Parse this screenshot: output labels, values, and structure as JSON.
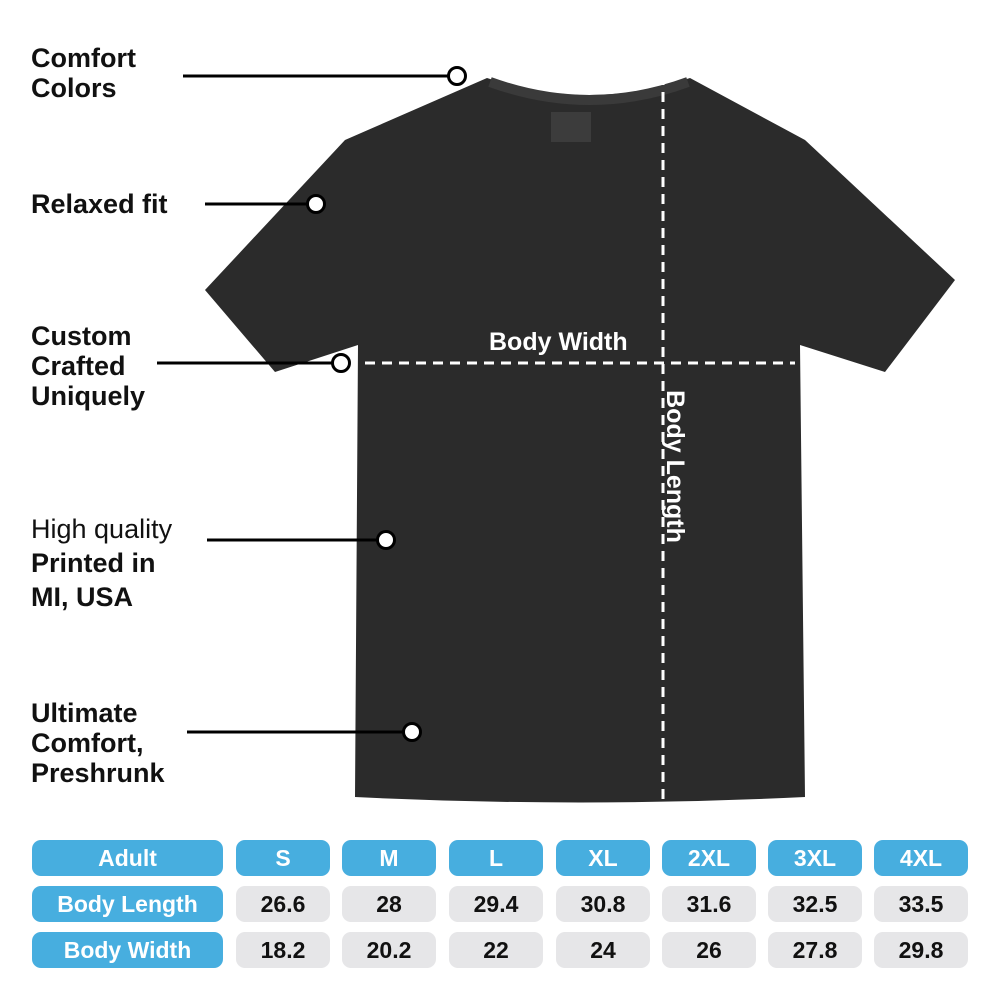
{
  "callouts": [
    {
      "lines": [
        "Comfort",
        "Colors"
      ]
    },
    {
      "lines": [
        "Relaxed fit"
      ]
    },
    {
      "lines": [
        "Custom",
        "Crafted",
        "Uniquely"
      ]
    },
    {
      "light": "High quality",
      "lines": [
        "Printed in",
        "MI, USA"
      ]
    },
    {
      "lines": [
        "Ultimate",
        "Comfort,",
        "Preshrunk"
      ]
    }
  ],
  "dimensions": {
    "width_label": "Body Width",
    "length_label": "Body Length"
  },
  "colors": {
    "accent": "#47aedf",
    "cell": "#e6e6e8",
    "shirt": "#2b2b2b"
  },
  "size_table": {
    "header": [
      "Adult",
      "S",
      "M",
      "L",
      "XL",
      "2XL",
      "3XL",
      "4XL"
    ],
    "rows": [
      [
        "Body Length",
        "26.6",
        "28",
        "29.4",
        "30.8",
        "31.6",
        "32.5",
        "33.5"
      ],
      [
        "Body Width",
        "18.2",
        "20.2",
        "22",
        "24",
        "26",
        "27.8",
        "29.8"
      ]
    ]
  }
}
